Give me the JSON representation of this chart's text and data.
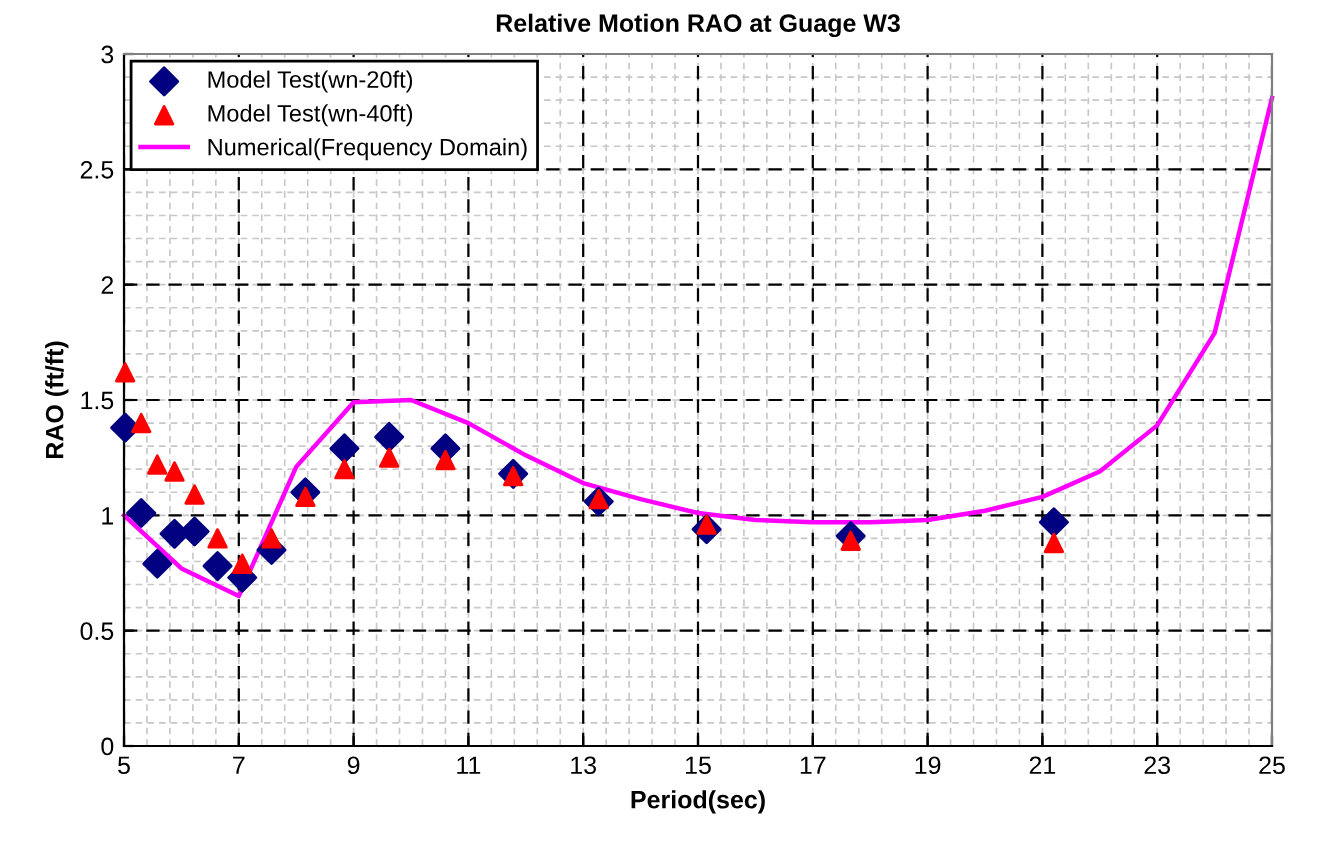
{
  "chart_data": {
    "type": "scatter",
    "title": "Relative Motion RAO at Guage W3",
    "xlabel": "Period(sec)",
    "ylabel": "RAO (ft/ft)",
    "xlim": [
      5,
      25
    ],
    "xticks": [
      5,
      7,
      9,
      11,
      13,
      15,
      17,
      19,
      21,
      23,
      25
    ],
    "ylim": [
      0,
      3
    ],
    "yticks": [
      0,
      0.5,
      1,
      1.5,
      2,
      2.5,
      3
    ],
    "grid": true,
    "legend": "top left",
    "series": [
      {
        "name": "Model Test(wn-20ft)",
        "marker": "diamond",
        "color": "#000080",
        "x": [
          5.02,
          5.3,
          5.58,
          5.88,
          6.23,
          6.63,
          7.06,
          7.57,
          8.16,
          8.84,
          9.62,
          10.6,
          11.78,
          13.27,
          15.15,
          17.66,
          21.2
        ],
        "values": [
          1.38,
          1.01,
          0.79,
          0.92,
          0.93,
          0.78,
          0.73,
          0.85,
          1.1,
          1.29,
          1.34,
          1.29,
          1.18,
          1.06,
          0.94,
          0.91,
          0.97
        ]
      },
      {
        "name": "Model Test(wn-40ft)",
        "marker": "triangle",
        "color": "#ff0000",
        "x": [
          5.02,
          5.3,
          5.58,
          5.88,
          6.23,
          6.63,
          7.06,
          7.57,
          8.16,
          8.84,
          9.62,
          10.6,
          11.78,
          13.27,
          15.15,
          17.66,
          21.2
        ],
        "values": [
          1.62,
          1.4,
          1.22,
          1.19,
          1.09,
          0.9,
          0.79,
          0.9,
          1.08,
          1.2,
          1.25,
          1.24,
          1.17,
          1.07,
          0.96,
          0.89,
          0.88
        ]
      },
      {
        "name": "Numerical(Frequency Domain)",
        "type": "line",
        "marker": "none",
        "line_style": "solid",
        "color": "#ff00ff",
        "x": [
          5,
          6,
          7,
          8,
          9,
          10,
          11,
          12,
          13,
          14,
          15,
          16,
          17,
          18,
          19,
          20,
          21,
          22,
          23,
          24,
          25
        ],
        "values": [
          1.0,
          0.77,
          0.65,
          1.21,
          1.49,
          1.5,
          1.4,
          1.26,
          1.14,
          1.07,
          1.01,
          0.98,
          0.97,
          0.97,
          0.98,
          1.02,
          1.08,
          1.19,
          1.39,
          1.79,
          2.81
        ]
      }
    ]
  }
}
